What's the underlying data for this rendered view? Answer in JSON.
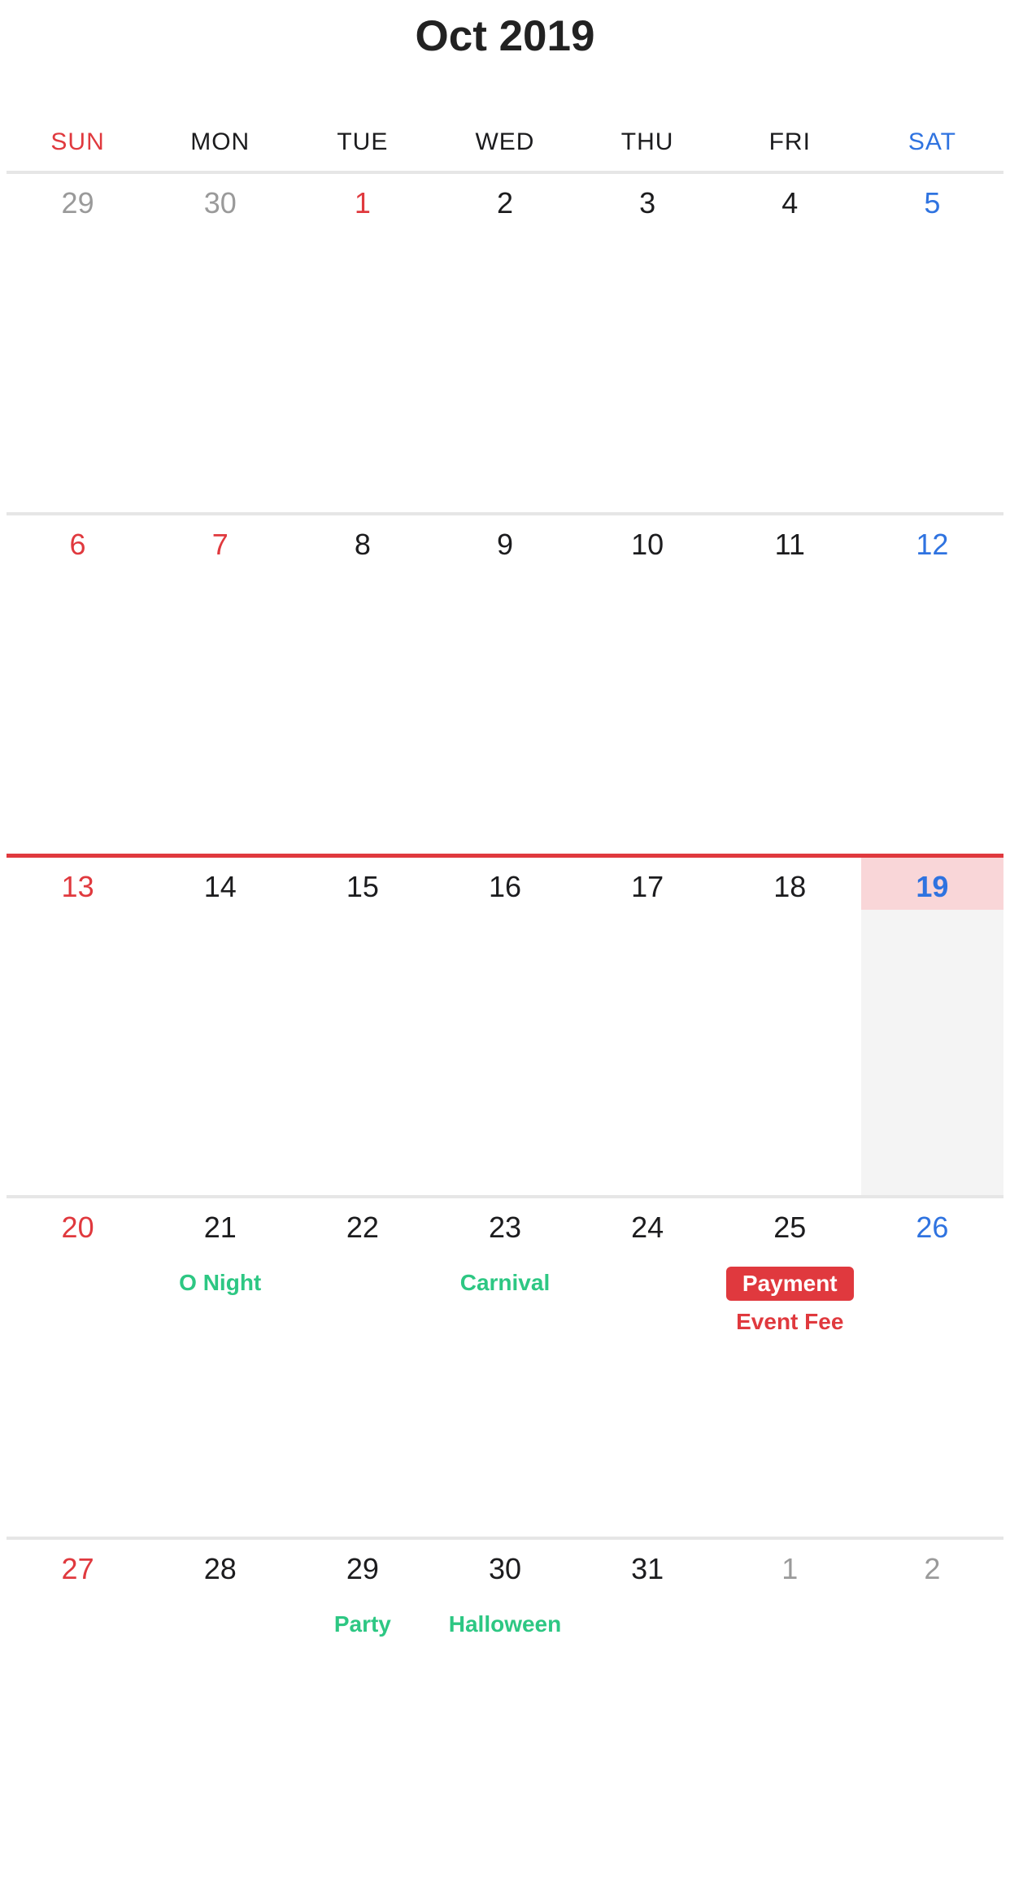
{
  "header": {
    "title": "Oct 2019"
  },
  "weekdays": [
    "SUN",
    "MON",
    "TUE",
    "WED",
    "THU",
    "FRI",
    "SAT"
  ],
  "colors": {
    "sunday": "#e0393e",
    "saturday": "#2f73e0",
    "muted": "#9a9a9a",
    "event_green": "#2dc783",
    "event_red": "#e0393e",
    "today_highlight": "#f9d6d8",
    "today_column": "#f4f4f4"
  },
  "weeks": [
    {
      "days": [
        {
          "day": "29",
          "other_month": true,
          "events": []
        },
        {
          "day": "30",
          "other_month": true,
          "events": []
        },
        {
          "day": "1",
          "holiday": true,
          "events": []
        },
        {
          "day": "2",
          "events": []
        },
        {
          "day": "3",
          "events": []
        },
        {
          "day": "4",
          "events": []
        },
        {
          "day": "5",
          "events": []
        }
      ]
    },
    {
      "days": [
        {
          "day": "6",
          "events": []
        },
        {
          "day": "7",
          "holiday": true,
          "events": []
        },
        {
          "day": "8",
          "events": []
        },
        {
          "day": "9",
          "events": []
        },
        {
          "day": "10",
          "events": []
        },
        {
          "day": "11",
          "events": []
        },
        {
          "day": "12",
          "events": []
        }
      ]
    },
    {
      "current": true,
      "days": [
        {
          "day": "13",
          "events": []
        },
        {
          "day": "14",
          "events": []
        },
        {
          "day": "15",
          "events": []
        },
        {
          "day": "16",
          "events": []
        },
        {
          "day": "17",
          "events": []
        },
        {
          "day": "18",
          "events": []
        },
        {
          "day": "19",
          "today": true,
          "events": []
        }
      ]
    },
    {
      "days": [
        {
          "day": "20",
          "events": []
        },
        {
          "day": "21",
          "events": [
            {
              "label": "O Night",
              "style": "green"
            }
          ]
        },
        {
          "day": "22",
          "events": []
        },
        {
          "day": "23",
          "events": [
            {
              "label": "Carnival",
              "style": "green"
            }
          ]
        },
        {
          "day": "24",
          "events": []
        },
        {
          "day": "25",
          "events": [
            {
              "label": "Payment",
              "style": "badge"
            },
            {
              "label": "Event Fee",
              "style": "red"
            }
          ]
        },
        {
          "day": "26",
          "events": []
        }
      ]
    },
    {
      "days": [
        {
          "day": "27",
          "events": []
        },
        {
          "day": "28",
          "events": []
        },
        {
          "day": "29",
          "events": [
            {
              "label": "Party",
              "style": "green"
            }
          ]
        },
        {
          "day": "30",
          "events": [
            {
              "label": "Halloween",
              "style": "green"
            }
          ]
        },
        {
          "day": "31",
          "events": []
        },
        {
          "day": "1",
          "other_month": true,
          "events": []
        },
        {
          "day": "2",
          "other_month": true,
          "events": []
        }
      ]
    }
  ]
}
